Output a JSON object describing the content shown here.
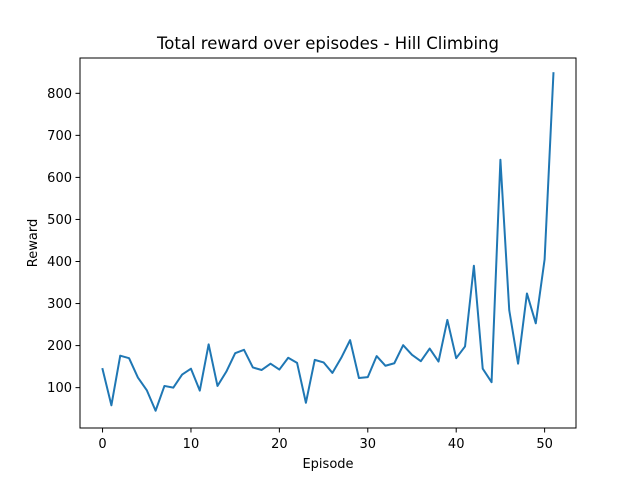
{
  "chart_data": {
    "type": "line",
    "title": "Total reward over episodes - Hill Climbing",
    "xlabel": "Episode",
    "ylabel": "Reward",
    "xlim": [
      -2.55,
      53.55
    ],
    "ylim": [
      4,
      884
    ],
    "xticks": [
      0,
      10,
      20,
      30,
      40,
      50
    ],
    "yticks": [
      100,
      200,
      300,
      400,
      500,
      600,
      700,
      800
    ],
    "grid": false,
    "legend": "none",
    "series": [
      {
        "color": "#1f77b4",
        "x": [
          0,
          1,
          2,
          3,
          4,
          5,
          6,
          7,
          8,
          9,
          10,
          11,
          12,
          13,
          14,
          15,
          16,
          17,
          18,
          19,
          20,
          21,
          22,
          23,
          24,
          25,
          26,
          27,
          28,
          29,
          30,
          31,
          32,
          33,
          34,
          35,
          36,
          37,
          38,
          39,
          40,
          41,
          42,
          43,
          44,
          45,
          46,
          47,
          48,
          49,
          50,
          51
        ],
        "y": [
          144,
          58,
          176,
          170,
          124,
          94,
          45,
          104,
          100,
          131,
          145,
          93,
          203,
          104,
          138,
          182,
          190,
          148,
          142,
          157,
          143,
          171,
          159,
          64,
          166,
          160,
          135,
          171,
          213,
          123,
          125,
          175,
          152,
          158,
          201,
          178,
          163,
          193,
          162,
          261,
          170,
          198,
          390,
          145,
          113,
          642,
          284,
          157,
          324,
          253,
          405,
          848
        ]
      }
    ]
  }
}
